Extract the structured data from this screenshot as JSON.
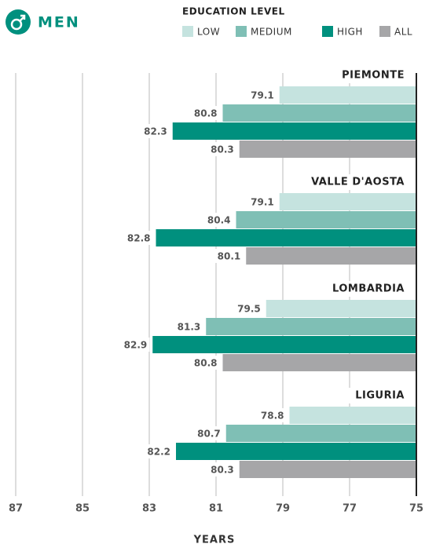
{
  "chart_data": {
    "type": "barh",
    "title": "MEN",
    "legend_title": "EDUCATION LEVEL",
    "x_label": "YEARS",
    "categories": [
      "PIEMONTE",
      "VALLE D'AOSTA",
      "LOMBARDIA",
      "LIGURIA"
    ],
    "series": [
      {
        "name": "LOW",
        "color": "#c5e3df",
        "values": [
          79.1,
          79.1,
          79.5,
          78.8
        ]
      },
      {
        "name": "MEDIUM",
        "color": "#7fbfb5",
        "values": [
          80.8,
          80.4,
          81.3,
          80.7
        ]
      },
      {
        "name": "HIGH",
        "color": "#00907e",
        "values": [
          82.3,
          82.8,
          82.9,
          82.2
        ]
      },
      {
        "name": "ALL",
        "color": "#a6a6a8",
        "values": [
          80.3,
          80.1,
          80.8,
          80.3
        ]
      }
    ],
    "xlim": [
      87,
      75
    ],
    "xticks": [
      87,
      85,
      83,
      81,
      79,
      77,
      75
    ],
    "grid": true
  }
}
